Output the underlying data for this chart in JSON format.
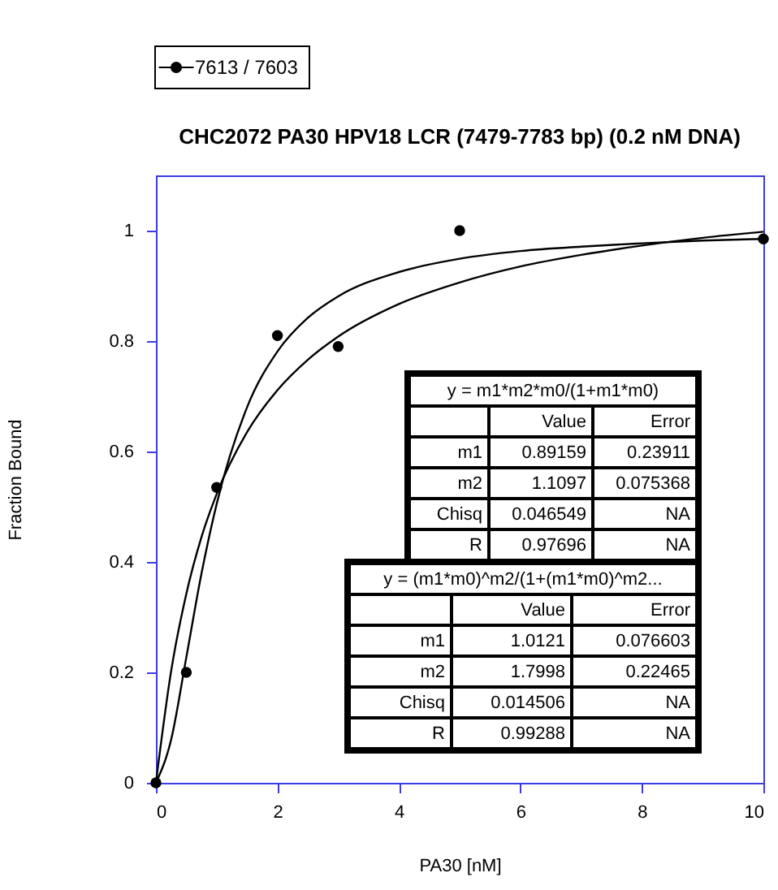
{
  "chart_data": {
    "type": "scatter",
    "title": "CHC2072 PA30 HPV18 LCR (7479-7783 bp) (0.2 nM DNA)",
    "xlabel": "PA30 [nM]",
    "ylabel": "Fraction Bound",
    "xlim": [
      0,
      10
    ],
    "xticks": [
      0,
      2,
      4,
      6,
      8,
      10
    ],
    "ylim": [
      0,
      1.1
    ],
    "yticks": [
      0,
      0.2,
      0.4,
      0.6,
      0.8,
      1
    ],
    "grid": false,
    "legend": "top left",
    "marker": "circle",
    "series": [
      {
        "name": "7613 / 7603",
        "color": "#000000",
        "x": [
          0,
          0.5,
          1,
          2,
          3,
          5,
          10
        ],
        "values": [
          0,
          0.2,
          0.535,
          0.81,
          0.79,
          1.0,
          0.985
        ]
      },
      {
        "type": "line",
        "color": "#000000",
        "marker": "none",
        "x": [
          0,
          0.25,
          0.5,
          0.75,
          1,
          1.5,
          2,
          2.5,
          3,
          4,
          5,
          6,
          7,
          8,
          9,
          10
        ],
        "values": [
          0,
          0.202,
          0.342,
          0.445,
          0.523,
          0.635,
          0.711,
          0.766,
          0.808,
          0.867,
          0.906,
          0.935,
          0.956,
          0.973,
          0.987,
          0.998
        ]
      },
      {
        "type": "line",
        "color": "#000000",
        "marker": "none",
        "x": [
          0,
          0.25,
          0.5,
          0.75,
          1,
          1.5,
          2,
          2.5,
          3,
          4,
          5,
          6,
          7,
          8,
          9,
          10
        ],
        "values": [
          0,
          0.078,
          0.227,
          0.379,
          0.505,
          0.68,
          0.781,
          0.842,
          0.881,
          0.925,
          0.949,
          0.963,
          0.971,
          0.977,
          0.982,
          0.985
        ]
      }
    ],
    "annotations": [
      "y = m1*m2*m0/(1+m1*m0)",
      "Value",
      "Error",
      "m1",
      "0.89159",
      "0.23911",
      "m2",
      "1.1097",
      "0.075368",
      "Chisq",
      "0.046549",
      "NA",
      "R",
      "0.97696",
      "NA",
      "y = (m1*m0)^m2/(1+(m1*m0)^m2...",
      "Value",
      "Error",
      "m1",
      "1.0121",
      "0.076603",
      "m2",
      "1.7998",
      "0.22465",
      "Chisq",
      "0.014506",
      "NA",
      "R",
      "0.99288",
      "NA"
    ]
  }
}
